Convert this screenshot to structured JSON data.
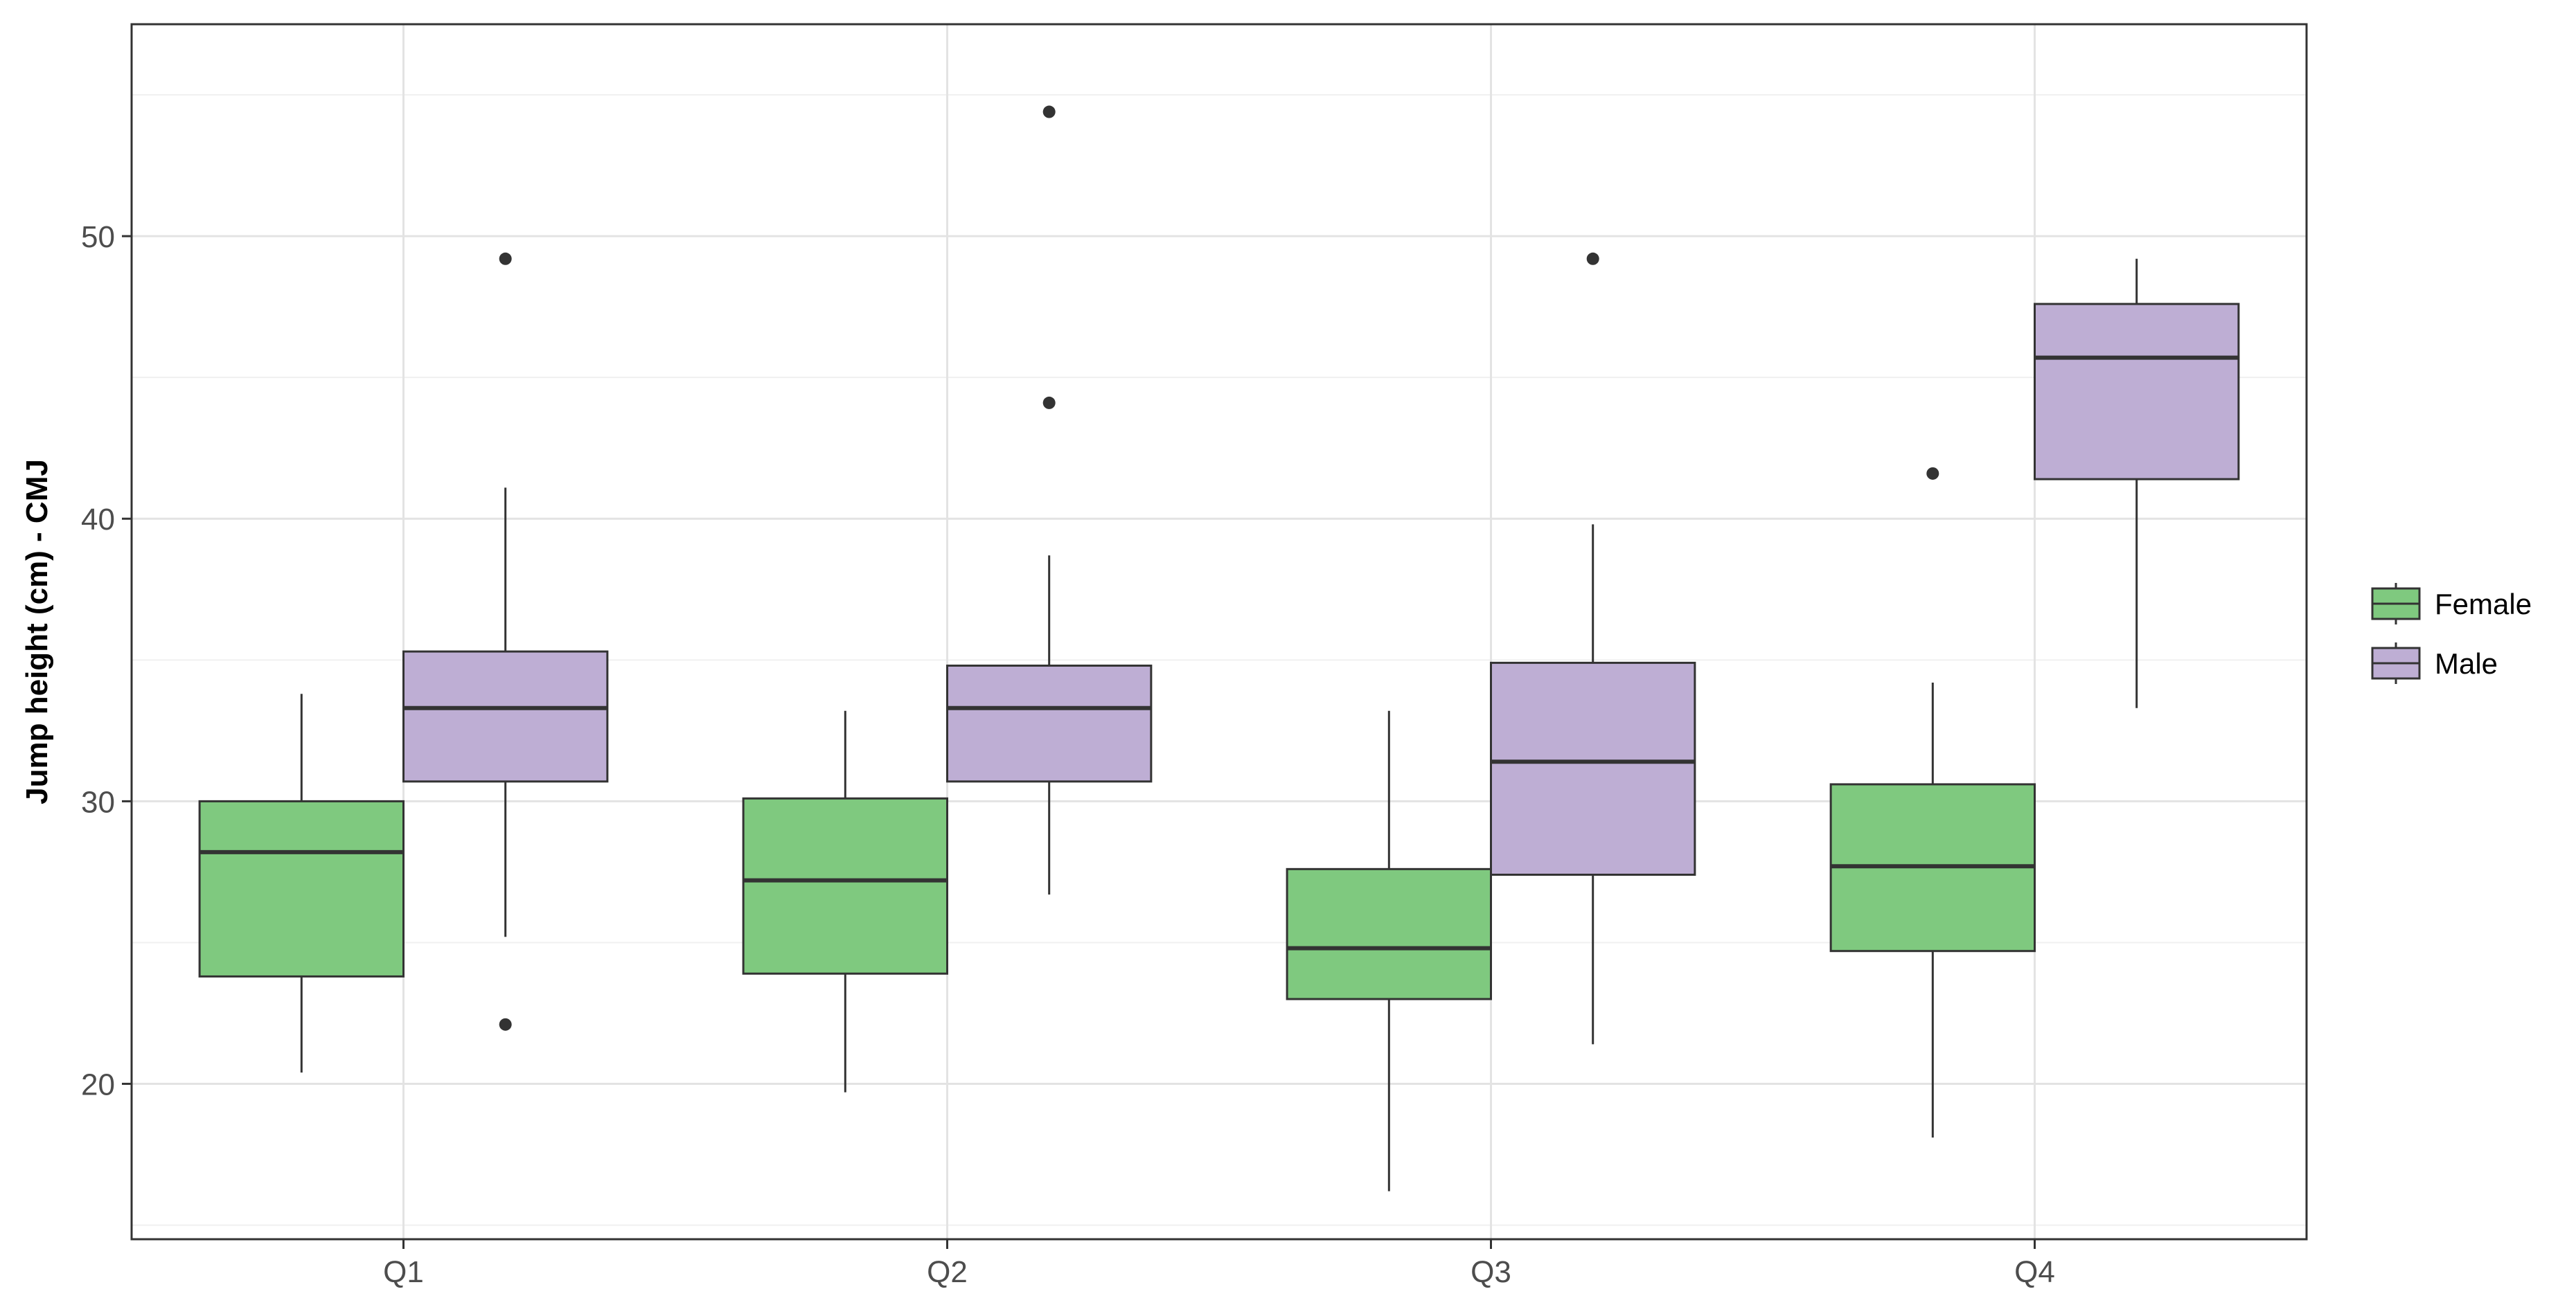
{
  "chart_data": {
    "type": "box",
    "title": "",
    "xlabel": "",
    "ylabel": "Jump height (cm) - CMJ",
    "categories": [
      "Q1",
      "Q2",
      "Q3",
      "Q4"
    ],
    "ylim": [
      14.5,
      57.5
    ],
    "y_ticks": [
      20,
      30,
      40,
      50
    ],
    "grid": true,
    "legend_position": "right",
    "series": [
      {
        "name": "Female",
        "color": "#7fc97f",
        "boxes": [
          {
            "category": "Q1",
            "whisker_low": 20.4,
            "q1": 23.8,
            "median": 28.2,
            "q3": 30.0,
            "whisker_high": 33.8,
            "outliers": []
          },
          {
            "category": "Q2",
            "whisker_low": 19.7,
            "q1": 23.9,
            "median": 27.2,
            "q3": 30.1,
            "whisker_high": 33.2,
            "outliers": []
          },
          {
            "category": "Q3",
            "whisker_low": 16.2,
            "q1": 23.0,
            "median": 24.8,
            "q3": 27.6,
            "whisker_high": 33.2,
            "outliers": []
          },
          {
            "category": "Q4",
            "whisker_low": 18.1,
            "q1": 24.7,
            "median": 27.7,
            "q3": 30.6,
            "whisker_high": 34.2,
            "outliers": [
              41.6
            ]
          }
        ]
      },
      {
        "name": "Male",
        "color": "#beaed4",
        "boxes": [
          {
            "category": "Q1",
            "whisker_low": 25.2,
            "q1": 30.7,
            "median": 33.3,
            "q3": 35.3,
            "whisker_high": 41.1,
            "outliers": [
              49.2,
              22.1
            ]
          },
          {
            "category": "Q2",
            "whisker_low": 26.7,
            "q1": 30.7,
            "median": 33.3,
            "q3": 34.8,
            "whisker_high": 38.7,
            "outliers": [
              54.4,
              44.1
            ]
          },
          {
            "category": "Q3",
            "whisker_low": 21.4,
            "q1": 27.4,
            "median": 31.4,
            "q3": 34.9,
            "whisker_high": 39.8,
            "outliers": [
              49.2
            ]
          },
          {
            "category": "Q4",
            "whisker_low": 33.3,
            "q1": 41.4,
            "median": 45.7,
            "q3": 47.6,
            "whisker_high": 49.2,
            "outliers": []
          }
        ]
      }
    ]
  }
}
